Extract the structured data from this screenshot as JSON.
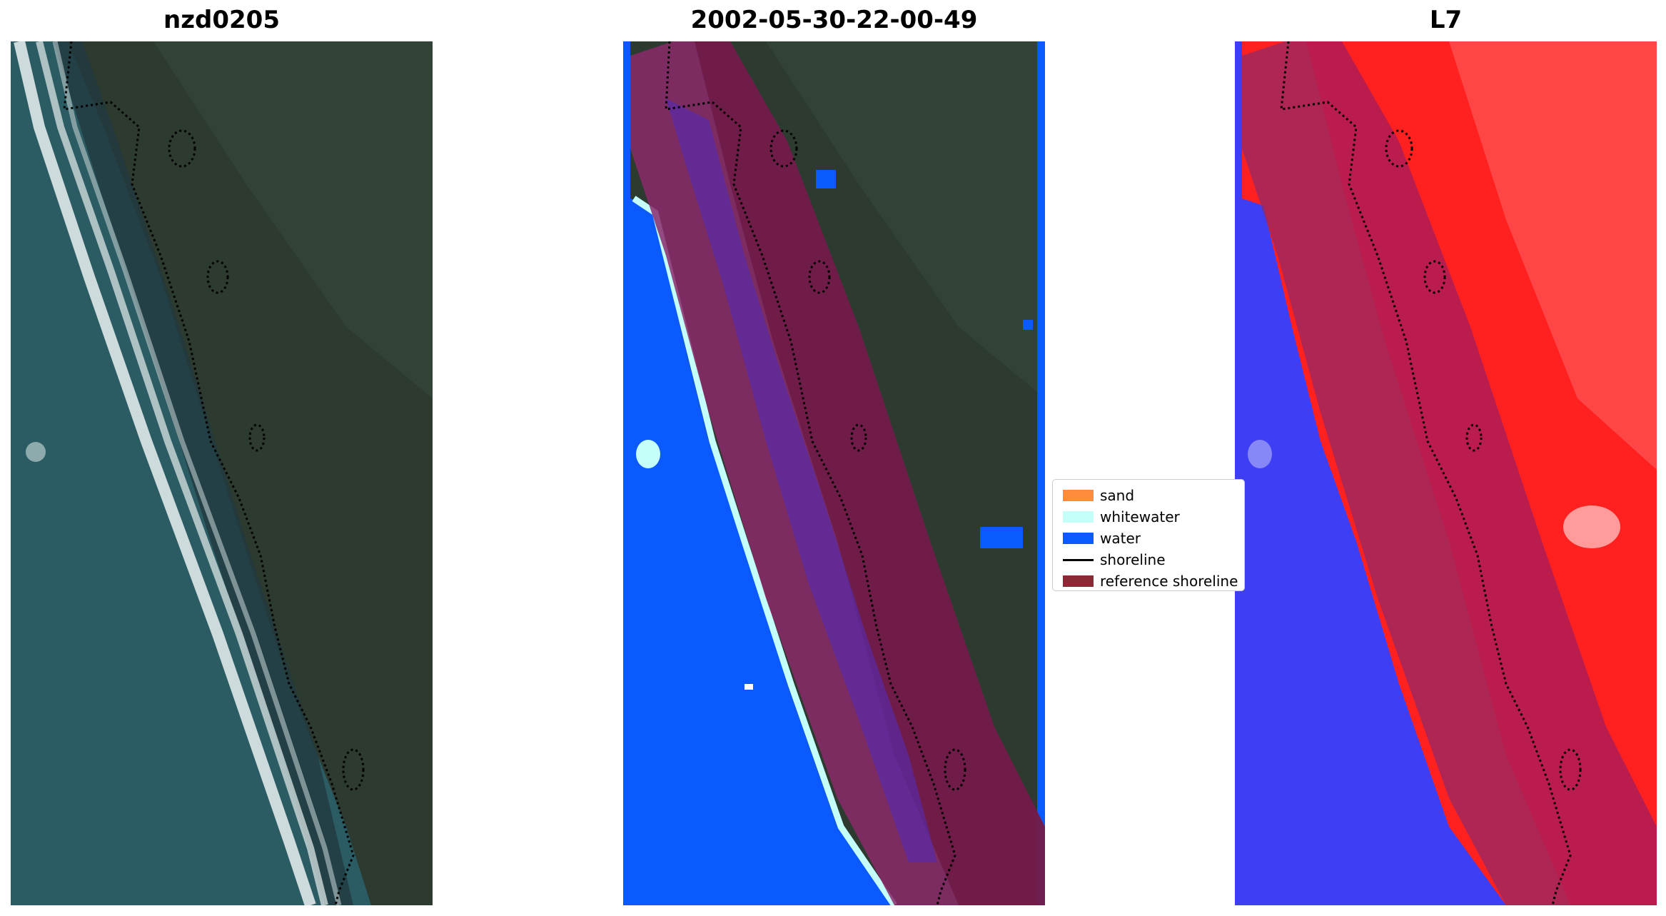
{
  "panels": [
    {
      "title": "nzd0205"
    },
    {
      "title": "2002-05-30-22-00-49"
    },
    {
      "title": "L7"
    }
  ],
  "legend": {
    "items": [
      {
        "label": "sand",
        "color": "#ff8c3c",
        "kind": "patch"
      },
      {
        "label": "whitewater",
        "color": "#c4fffa",
        "kind": "patch"
      },
      {
        "label": "water",
        "color": "#0a5aff",
        "kind": "patch"
      },
      {
        "label": "shoreline",
        "color": "#000000",
        "kind": "line"
      },
      {
        "label": "reference shoreline",
        "color": "#8b2a35",
        "kind": "patch"
      }
    ]
  },
  "colors": {
    "satellite_sea": "#2b5b63",
    "satellite_land": "#2c3a30",
    "surf": "#e6eeee",
    "class_water": "#0a5aff",
    "class_whitewater": "#c4fffa",
    "buffer_overlay": "#8b2a6a",
    "index_water": "#3e3ef4",
    "index_land": "#ff2020"
  }
}
